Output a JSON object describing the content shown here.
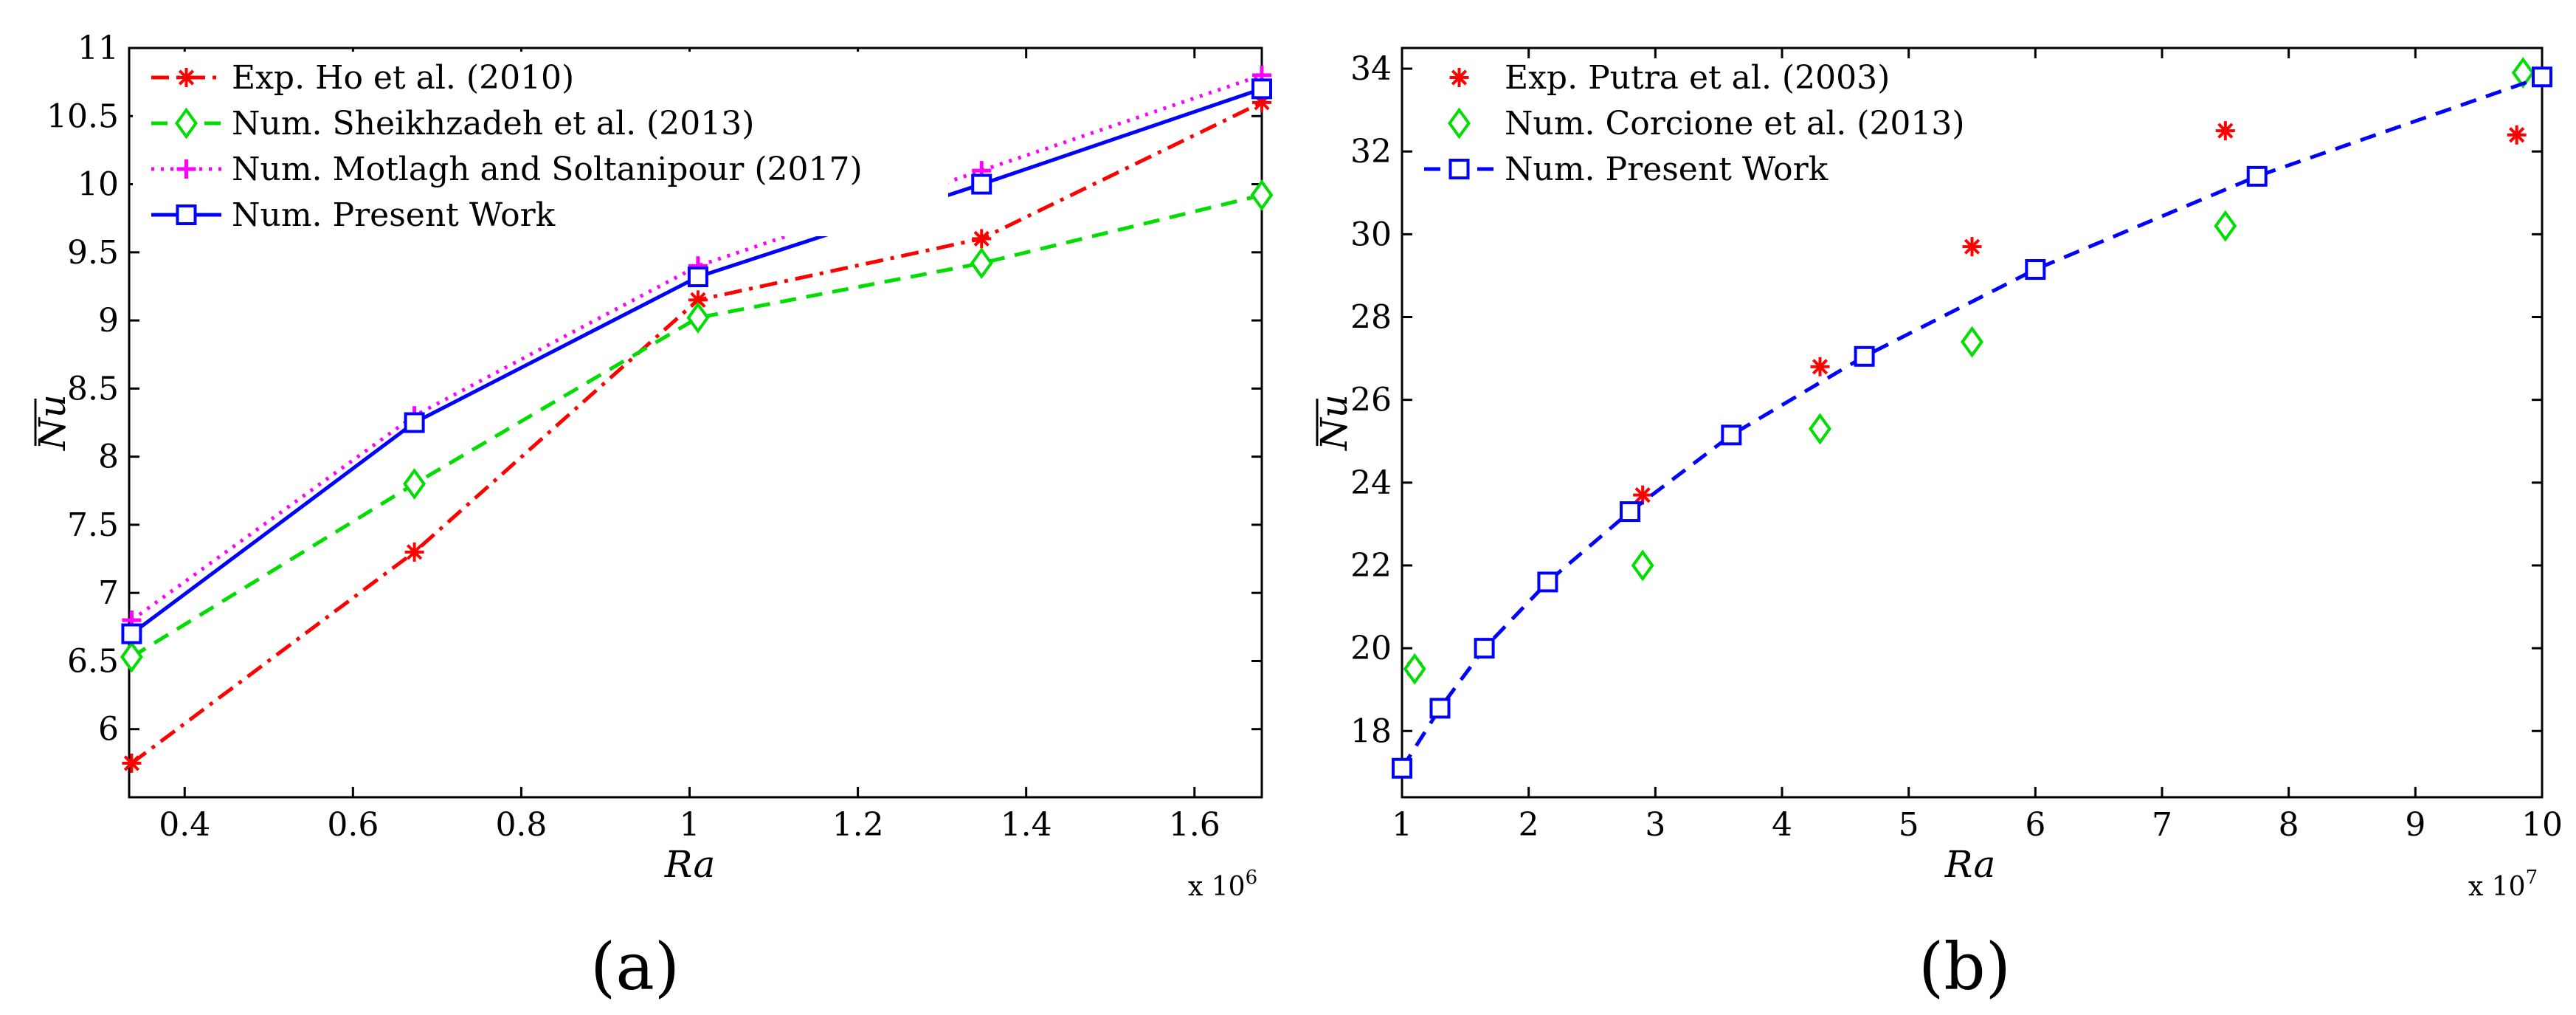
{
  "chart_data": [
    {
      "type": "line",
      "panel_label": "(a)",
      "xlabel": "Ra",
      "ylabel": "Nu",
      "x_multiplier": "x 10",
      "x_multiplier_exp": "6",
      "xlim": [
        0.334,
        1.68
      ],
      "ylim": [
        5.5,
        11
      ],
      "xticks": [
        "0.4",
        "0.6",
        "0.8",
        "1",
        "1.2",
        "1.4",
        "1.6"
      ],
      "yticks": [
        "6",
        "6.5",
        "7",
        "7.5",
        "8",
        "8.5",
        "9",
        "9.5",
        "10",
        "10.5",
        "11"
      ],
      "legend_position": "top-left",
      "series": [
        {
          "name": "Exp. Ho et al. (2010)",
          "color": "#ff0000",
          "line": "dashdot",
          "marker": "asterisk",
          "x": [
            0.337,
            0.673,
            1.01,
            1.347,
            1.68
          ],
          "y": [
            5.75,
            7.3,
            9.15,
            9.6,
            10.6
          ]
        },
        {
          "name": "Num. Sheikhzadeh et al. (2013)",
          "color": "#00dd00",
          "line": "dashed",
          "marker": "diamond",
          "x": [
            0.337,
            0.673,
            1.01,
            1.347,
            1.68
          ],
          "y": [
            6.53,
            7.8,
            9.02,
            9.42,
            9.92
          ]
        },
        {
          "name": "Num. Motlagh and Soltanipour (2017)",
          "color": "#ff00ff",
          "line": "dotted",
          "marker": "plus",
          "x": [
            0.337,
            0.673,
            1.01,
            1.347,
            1.68
          ],
          "y": [
            6.8,
            8.3,
            9.4,
            10.1,
            10.8
          ]
        },
        {
          "name": "Num. Present Work",
          "color": "#0000ff",
          "line": "solid",
          "marker": "square",
          "x": [
            0.337,
            0.673,
            1.01,
            1.347,
            1.68
          ],
          "y": [
            6.7,
            8.25,
            9.32,
            10.0,
            10.7
          ]
        }
      ]
    },
    {
      "type": "scatter",
      "panel_label": "(b)",
      "xlabel": "Ra",
      "ylabel": "Nu",
      "x_multiplier": "x 10",
      "x_multiplier_exp": "7",
      "xlim": [
        1,
        10
      ],
      "ylim": [
        16.4,
        34.5
      ],
      "xticks": [
        "1",
        "2",
        "3",
        "4",
        "5",
        "6",
        "7",
        "8",
        "9",
        "10"
      ],
      "yticks": [
        "18",
        "20",
        "22",
        "24",
        "26",
        "28",
        "30",
        "32",
        "34"
      ],
      "legend_position": "top-left",
      "series": [
        {
          "name": "Exp. Putra et al. (2003)",
          "color": "#ff0000",
          "line": "none",
          "marker": "asterisk",
          "x": [
            1.1,
            2.9,
            4.3,
            5.5,
            7.5,
            9.8
          ],
          "y": [
            19.5,
            23.7,
            26.8,
            29.7,
            32.5,
            32.4
          ]
        },
        {
          "name": "Num. Corcione et al. (2013)",
          "color": "#00dd00",
          "line": "none",
          "marker": "diamond",
          "x": [
            1.1,
            2.9,
            4.3,
            5.5,
            7.5,
            9.85
          ],
          "y": [
            19.5,
            22.0,
            25.3,
            27.4,
            30.2,
            33.9
          ]
        },
        {
          "name": "Num. Present Work",
          "color": "#0000ff",
          "line": "dashed",
          "marker": "square",
          "x": [
            1.0,
            1.3,
            1.65,
            2.15,
            2.8,
            3.6,
            4.65,
            6.0,
            7.75,
            10.0
          ],
          "y": [
            17.1,
            18.55,
            20.0,
            21.6,
            23.3,
            25.15,
            27.05,
            29.15,
            31.4,
            33.8
          ]
        }
      ]
    }
  ]
}
